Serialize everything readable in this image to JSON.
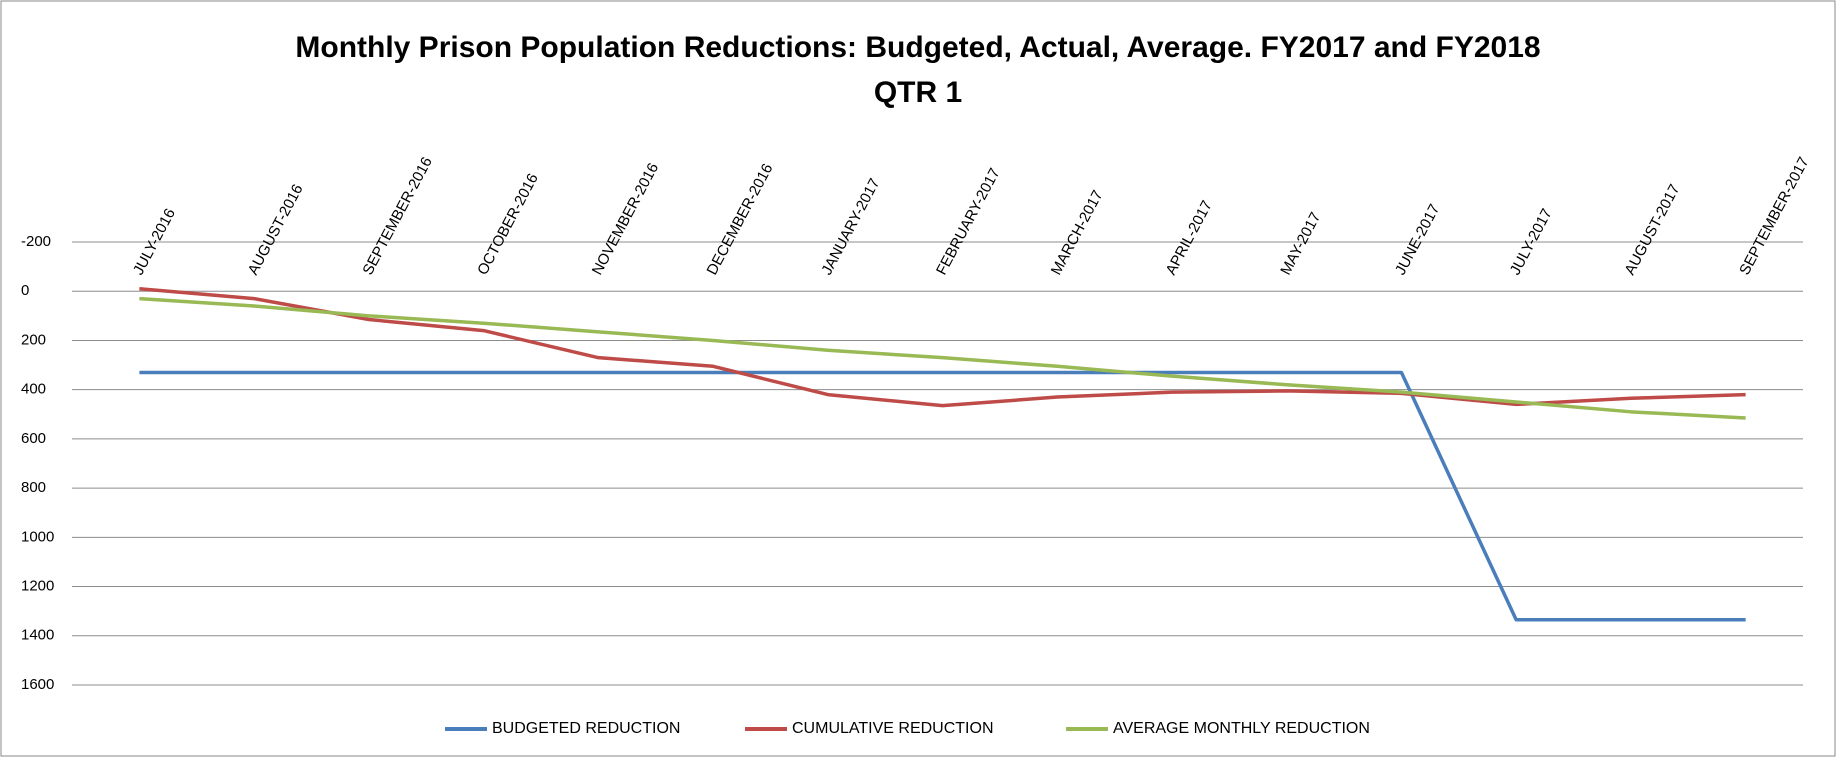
{
  "chart_data": {
    "type": "line",
    "title_lines": [
      "Monthly Prison Population Reductions: Budgeted, Actual, Average. FY2017 and FY2018",
      "QTR 1"
    ],
    "categories": [
      "JULY-2016",
      "AUGUST-2016",
      "SEPTEMBER-2016",
      "OCTOBER-2016",
      "NOVEMBER-2016",
      "DECEMBER-2016",
      "JANUARY-2017",
      "FEBRUARY-2017",
      "MARCH-2017",
      "APRIL-2017",
      "MAY-2017",
      "JUNE-2017",
      "JULY-2017",
      "AUGUST-2017",
      "SEPTEMBER-2017"
    ],
    "series": [
      {
        "name": "BUDGETED REDUCTION",
        "color": "#4a7ebb",
        "values": [
          330,
          330,
          330,
          330,
          330,
          330,
          330,
          330,
          330,
          330,
          330,
          330,
          1335,
          1335,
          1335
        ]
      },
      {
        "name": "CUMULATIVE REDUCTION",
        "color": "#be4b48",
        "values": [
          -10,
          30,
          115,
          160,
          270,
          305,
          420,
          465,
          430,
          410,
          405,
          415,
          460,
          435,
          420
        ]
      },
      {
        "name": "AVERAGE MONTHLY REDUCTION",
        "color": "#98b954",
        "values": [
          30,
          60,
          100,
          130,
          165,
          200,
          240,
          270,
          305,
          345,
          380,
          410,
          450,
          490,
          515
        ]
      }
    ],
    "ylim": [
      -200,
      1600
    ],
    "yticks": [
      -200,
      0,
      200,
      400,
      600,
      800,
      1000,
      1200,
      1400,
      1600
    ],
    "y_reversed": true,
    "grid": true,
    "legend": "bottom"
  }
}
